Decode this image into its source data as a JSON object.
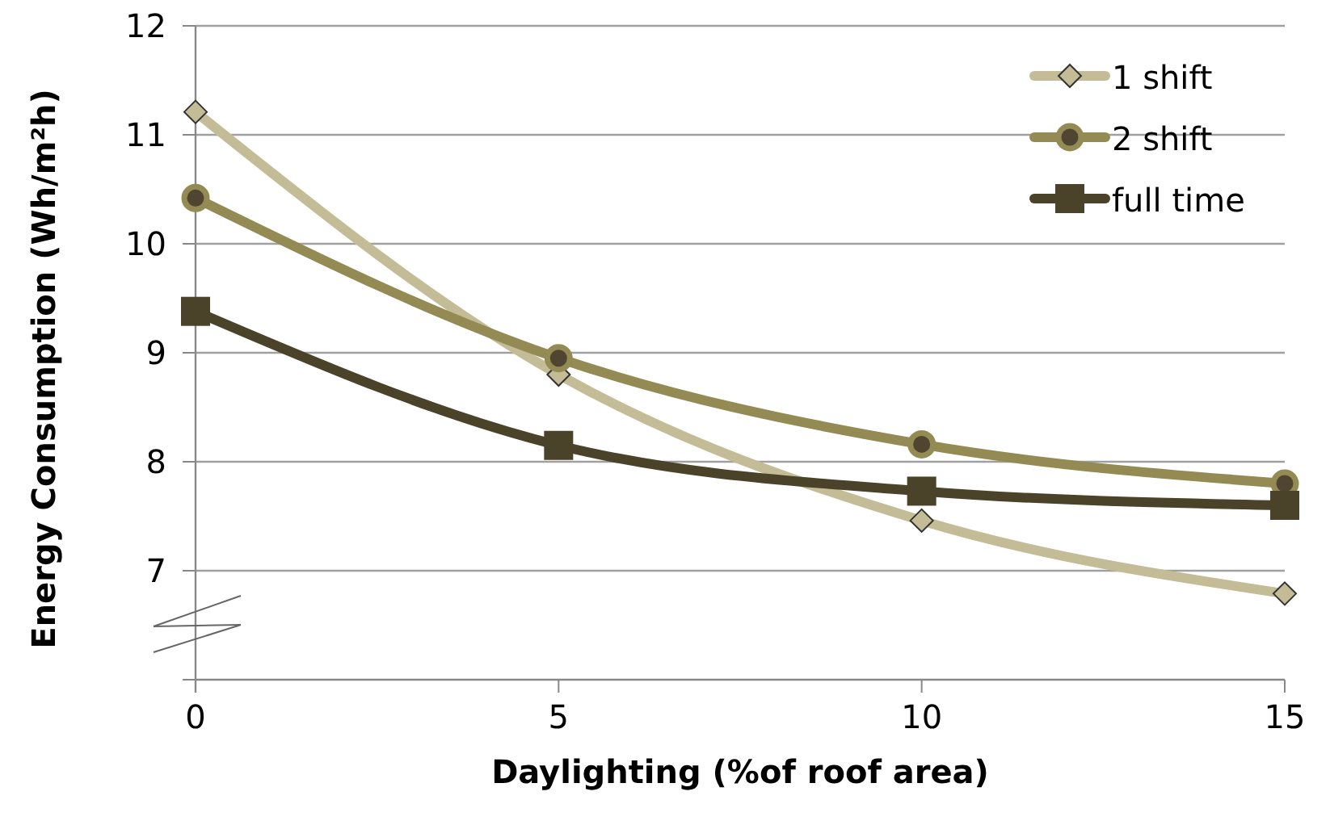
{
  "chart_data": {
    "type": "line",
    "xlabel": "Daylighting (%of roof area)",
    "ylabel": "Energy Consumption (Wh/m²h)",
    "x": [
      0,
      5,
      10,
      15
    ],
    "xlim": [
      0,
      15
    ],
    "xticks": [
      0,
      5,
      10,
      15
    ],
    "ylim": [
      6,
      12
    ],
    "yticks": [
      {
        "value": 6,
        "label": null
      },
      7,
      8,
      9,
      10,
      11,
      12
    ],
    "grid": "y",
    "legend": "top right",
    "series": [
      {
        "name": "1 shift",
        "color": "#c4bc96",
        "marker": "diamond",
        "values": [
          11.21,
          8.8,
          7.46,
          6.79
        ]
      },
      {
        "name": "2 shift",
        "color": "#948a54",
        "marker": "circle",
        "values": [
          10.42,
          8.95,
          8.16,
          7.8
        ]
      },
      {
        "name": "full time",
        "color": "#4a4229",
        "marker": "square",
        "values": [
          9.38,
          8.15,
          7.73,
          7.6
        ]
      }
    ]
  }
}
